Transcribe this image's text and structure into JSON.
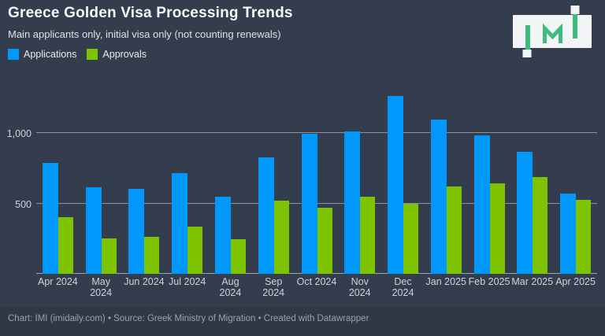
{
  "header": {
    "title": "Greece Golden Visa Processing Trends",
    "subtitle": "Main applicants only, initial visa only (not counting renewals)"
  },
  "legend": [
    {
      "label": "Applications",
      "color": "#0099fb"
    },
    {
      "label": "Approvals",
      "color": "#7dc300"
    }
  ],
  "logo": {
    "text": "IMI",
    "accent_color": "#3cbd7d",
    "box_color": "#f3f4f5"
  },
  "chart_data": {
    "type": "bar",
    "title": "Greece Golden Visa Processing Trends",
    "subtitle": "Main applicants only, initial visa only (not counting renewals)",
    "categories": [
      "Apr 2024",
      "May\n2024",
      "Jun 2024",
      "Jul 2024",
      "Aug\n2024",
      "Sep\n2024",
      "Oct 2024",
      "Nov\n2024",
      "Dec\n2024",
      "Jan 2025",
      "Feb 2025",
      "Mar 2025",
      "Apr 2025"
    ],
    "series": [
      {
        "name": "Applications",
        "color": "#0099fb",
        "values": [
          790,
          615,
          605,
          715,
          545,
          825,
          995,
          1010,
          1265,
          1095,
          985,
          865,
          570
        ]
      },
      {
        "name": "Approvals",
        "color": "#7dc300",
        "values": [
          405,
          250,
          265,
          335,
          245,
          520,
          470,
          545,
          500,
          620,
          640,
          690,
          525
        ]
      }
    ],
    "ylim": [
      0,
      1385
    ],
    "yticks": [
      {
        "value": 500,
        "label": "500"
      },
      {
        "value": 1000,
        "label": "1,000"
      }
    ],
    "grid": "horizontal",
    "legend_position": "top-left",
    "background_color": "#333d4d"
  },
  "footer": {
    "text": "Chart: IMI (imidaily.com) • Source: Greek Ministry of Migration • Created with Datawrapper"
  }
}
